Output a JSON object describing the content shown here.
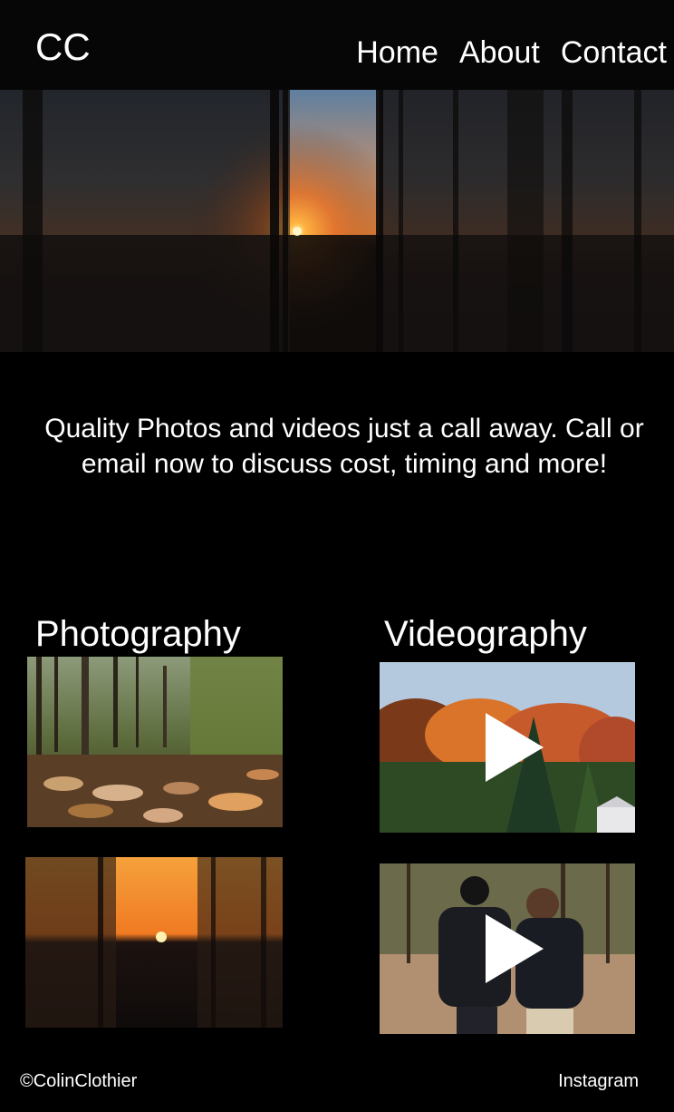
{
  "header": {
    "logo": "CC",
    "nav": [
      {
        "label": "Home"
      },
      {
        "label": "About"
      },
      {
        "label": "Contact"
      }
    ]
  },
  "tagline": "Quality Photos and videos just a call away. Call or email now to discuss cost, timing and more!",
  "sections": {
    "photography": {
      "title": "Photography"
    },
    "videography": {
      "title": "Videography"
    }
  },
  "footer": {
    "copyright": "©ColinClothier",
    "instagram": "Instagram"
  },
  "colors": {
    "background": "#000000",
    "text": "#ffffff"
  }
}
